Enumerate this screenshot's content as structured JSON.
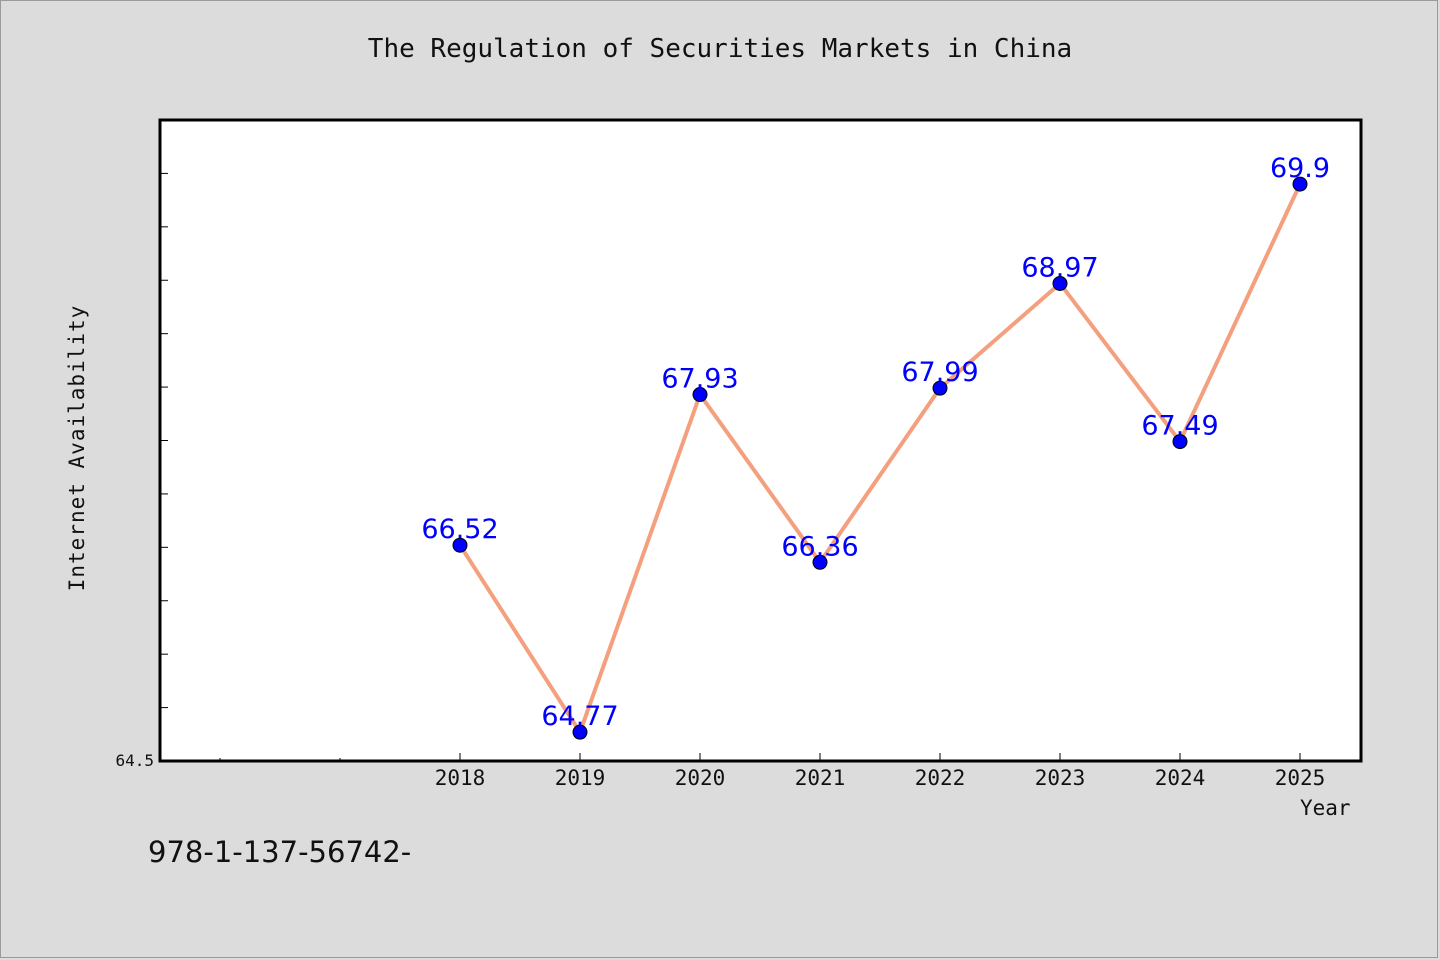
{
  "chart_data": {
    "type": "line",
    "title": "The Regulation of Securities Markets in China",
    "xlabel": "Year",
    "ylabel": "Internet Availability",
    "categories": [
      "2018",
      "2019",
      "2020",
      "2021",
      "2022",
      "2023",
      "2024",
      "2025"
    ],
    "series": [
      {
        "values": [
          66.52,
          64.77,
          67.93,
          66.36,
          67.99,
          68.97,
          67.49,
          69.9
        ],
        "labels": [
          "66.52",
          "64.77",
          "67.93",
          "66.36",
          "67.99",
          "68.97",
          "67.49",
          "69.9"
        ]
      }
    ],
    "x_ticks_unlabeled_before": 2,
    "y_tick_label": "64.5",
    "ylim": [
      64.5,
      70.5
    ],
    "y_minor_step": 0.5,
    "grid": false,
    "colors": {
      "line": "#f4a07f",
      "marker": "#0000ff",
      "label": "#0000ff",
      "plot_bg": "#ffffff",
      "page_bg": "#dcdcdc"
    }
  },
  "footer": {
    "code": "978-1-137-56742-"
  }
}
